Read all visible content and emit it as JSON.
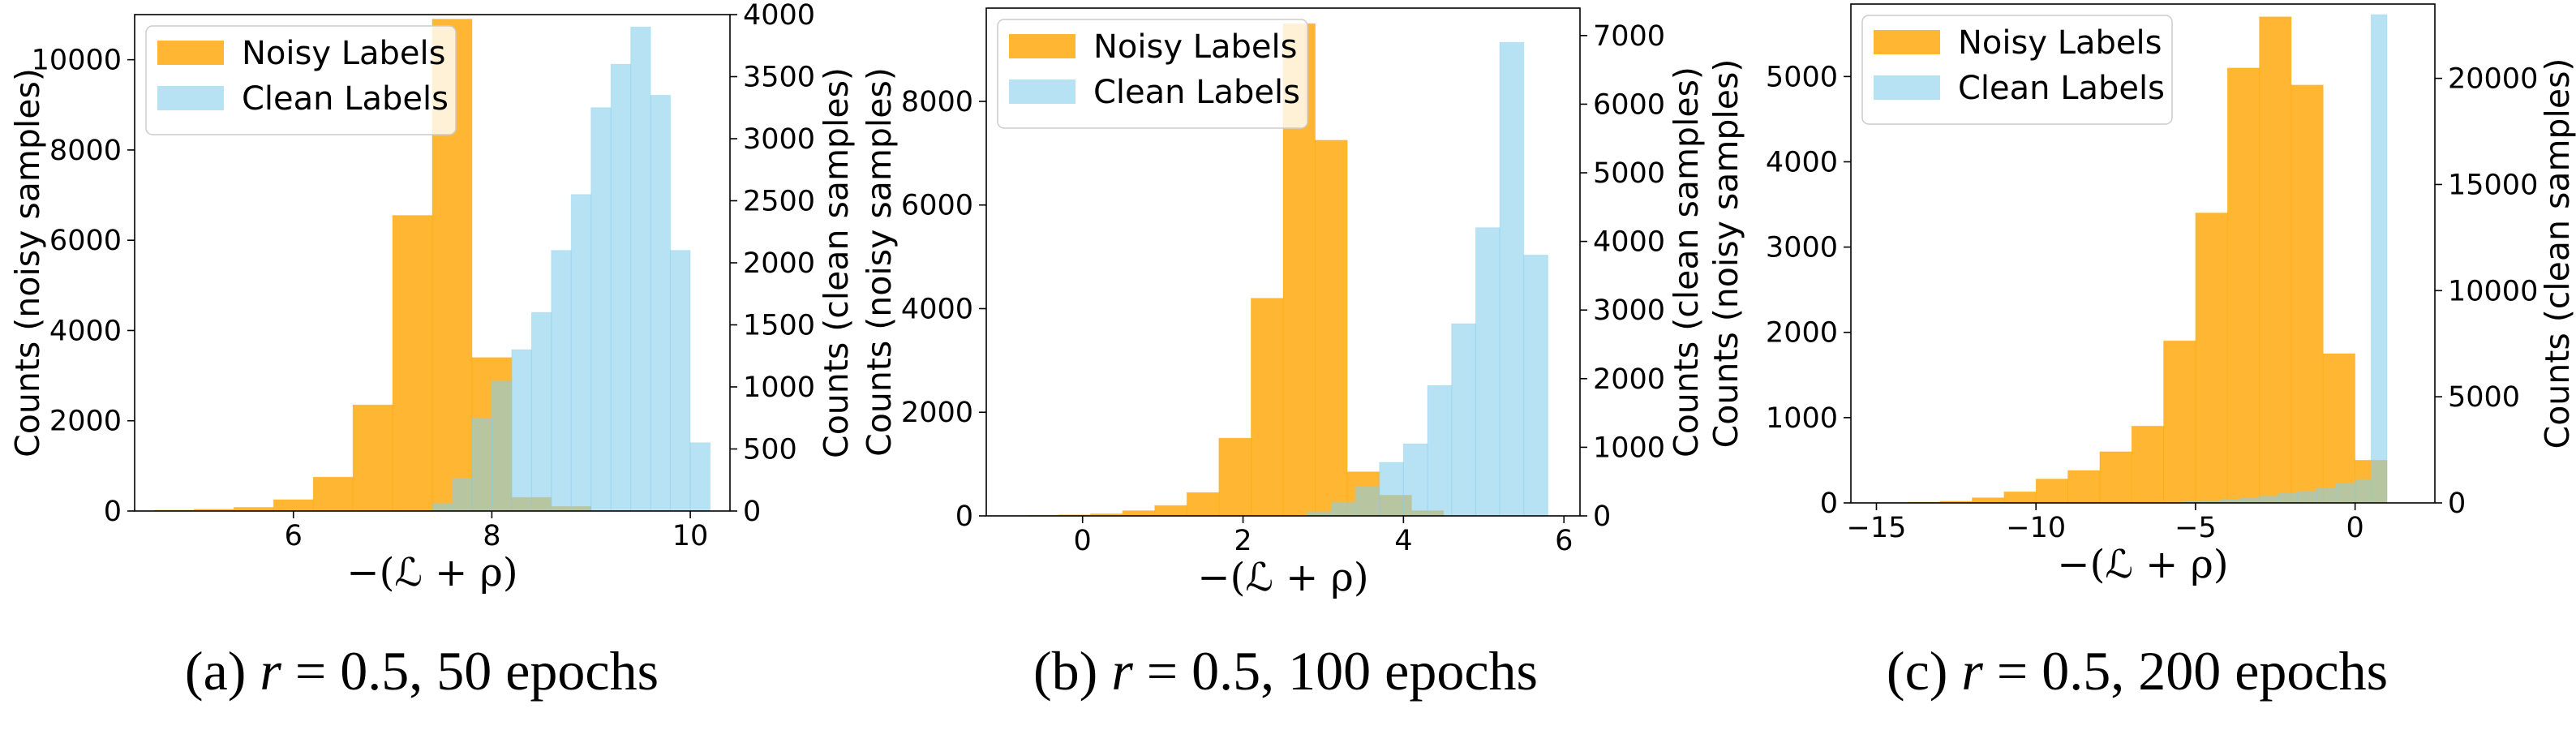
{
  "figure": {
    "captions": [
      {
        "prefix": "(a) ",
        "var": "r",
        "rest": " = 0.5, 50 epochs"
      },
      {
        "prefix": "(b) ",
        "var": "r",
        "rest": " = 0.5, 100 epochs"
      },
      {
        "prefix": "(c) ",
        "var": "r",
        "rest": " = 0.5, 200 epochs"
      }
    ]
  },
  "colors": {
    "noisy": "#FFA500",
    "clean": "#87CEEB",
    "noisy_alpha": 0.8,
    "clean_alpha": 0.6
  },
  "chart_data": [
    {
      "type": "bar",
      "xlabel": "−(ℒ + ρ)",
      "ylabel_left": "Counts (noisy samples)",
      "ylabel_right": "Counts (clean samples)",
      "legend": [
        "Noisy Labels",
        "Clean Labels"
      ],
      "legend_position": "top-left",
      "xlim": [
        4.4,
        10.4
      ],
      "xticks": [
        6,
        8,
        10
      ],
      "ylim_left": [
        0,
        11000
      ],
      "yticks_left": [
        0,
        2000,
        4000,
        6000,
        8000,
        10000
      ],
      "ylim_right": [
        0,
        4000
      ],
      "yticks_right": [
        0,
        500,
        1000,
        1500,
        2000,
        2500,
        3000,
        3500,
        4000
      ],
      "series": [
        {
          "name": "Noisy Labels",
          "axis": "left",
          "bins": [
            4.6,
            5.0,
            5.4,
            5.8,
            6.2,
            6.6,
            7.0,
            7.4,
            7.8,
            8.2,
            8.6,
            9.0
          ],
          "values": [
            20,
            40,
            80,
            250,
            750,
            2350,
            6550,
            10900,
            3400,
            300,
            100,
            20
          ]
        },
        {
          "name": "Clean Labels",
          "axis": "right",
          "bins": [
            7.4,
            7.6,
            7.8,
            8.0,
            8.2,
            8.4,
            8.6,
            8.8,
            9.0,
            9.2,
            9.4,
            9.6,
            9.8,
            10.0,
            10.2
          ],
          "values": [
            60,
            260,
            750,
            1050,
            1300,
            1600,
            2100,
            2550,
            3250,
            3600,
            3900,
            3350,
            2100,
            550
          ]
        }
      ]
    },
    {
      "type": "bar",
      "xlabel": "−(ℒ + ρ)",
      "ylabel_left": "Counts (noisy samples)",
      "ylabel_right": "Counts (clean samples)",
      "legend": [
        "Noisy Labels",
        "Clean Labels"
      ],
      "legend_position": "top-left",
      "xlim": [
        -1.2,
        6.2
      ],
      "xticks": [
        0,
        2,
        4,
        6
      ],
      "ylim_left": [
        0,
        9800
      ],
      "yticks_left": [
        0,
        2000,
        4000,
        6000,
        8000
      ],
      "ylim_right": [
        0,
        7400
      ],
      "yticks_right": [
        0,
        1000,
        2000,
        3000,
        4000,
        5000,
        6000,
        7000
      ],
      "series": [
        {
          "name": "Noisy Labels",
          "axis": "left",
          "bins": [
            -0.7,
            -0.3,
            0.1,
            0.5,
            0.9,
            1.3,
            1.7,
            2.1,
            2.5,
            2.9,
            3.3,
            3.7,
            4.1,
            4.5
          ],
          "values": [
            10,
            20,
            40,
            100,
            200,
            450,
            1500,
            4200,
            9500,
            7250,
            850,
            400,
            100
          ]
        },
        {
          "name": "Clean Labels",
          "axis": "right",
          "bins": [
            2.8,
            3.1,
            3.4,
            3.7,
            4.0,
            4.3,
            4.6,
            4.9,
            5.2,
            5.5,
            5.8
          ],
          "values": [
            60,
            200,
            420,
            780,
            1050,
            1900,
            2800,
            4200,
            6900,
            3800
          ]
        }
      ]
    },
    {
      "type": "bar",
      "xlabel": "−(ℒ + ρ)",
      "ylabel_left": "Counts (noisy samples)",
      "ylabel_right": "Counts (clean samples)",
      "legend": [
        "Noisy Labels",
        "Clean Labels"
      ],
      "legend_position": "top-left",
      "xlim": [
        -15.8,
        2.5
      ],
      "xticks": [
        -15,
        -10,
        -5,
        0
      ],
      "xtick_labels": [
        "−15",
        "−10",
        "−5",
        "0"
      ],
      "ylim_left": [
        0,
        5850
      ],
      "yticks_left": [
        0,
        1000,
        2000,
        3000,
        4000,
        5000
      ],
      "ylim_right": [
        0,
        23500
      ],
      "yticks_right": [
        0,
        5000,
        10000,
        15000,
        20000
      ],
      "series": [
        {
          "name": "Noisy Labels",
          "axis": "left",
          "bins": [
            -15.0,
            -14.0,
            -13.0,
            -12.0,
            -11.0,
            -10.0,
            -9.0,
            -8.0,
            -7.0,
            -6.0,
            -5.0,
            -4.0,
            -3.0,
            -2.0,
            -1.0,
            0.0,
            1.0
          ],
          "values": [
            5,
            10,
            20,
            60,
            130,
            280,
            380,
            600,
            900,
            1900,
            3400,
            5100,
            5700,
            4900,
            1750,
            500,
            400
          ]
        },
        {
          "name": "Clean Labels",
          "axis": "right",
          "bins": [
            -6.0,
            -5.4,
            -4.8,
            -4.2,
            -3.6,
            -3.0,
            -2.4,
            -1.8,
            -1.2,
            -0.6,
            0.0,
            0.5,
            1.0
          ],
          "values": [
            30,
            60,
            100,
            160,
            250,
            340,
            450,
            560,
            700,
            900,
            1100,
            23000
          ]
        }
      ]
    }
  ]
}
